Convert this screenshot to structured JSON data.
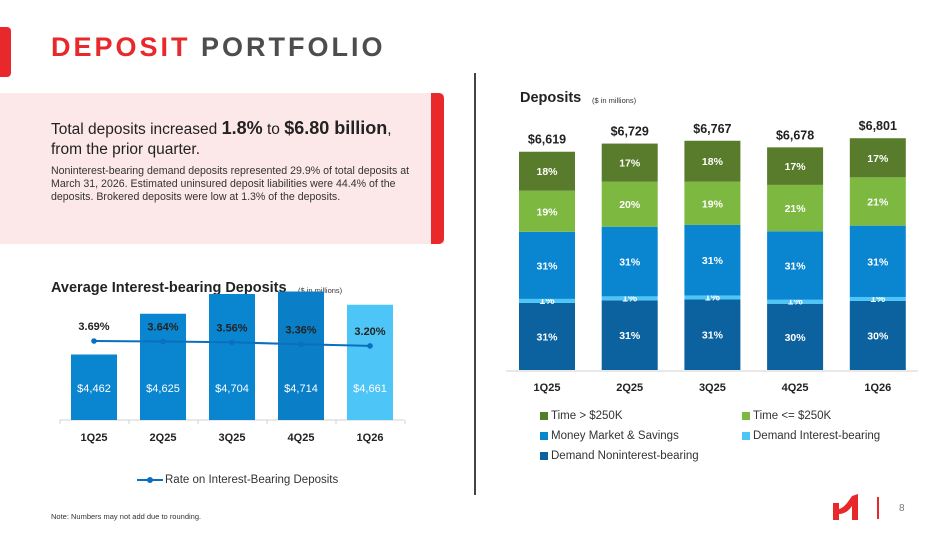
{
  "header": {
    "title_highlight": "DEPOSIT",
    "title_rest": "PORTFOLIO",
    "accent_color": "#e8282b"
  },
  "summary": {
    "headline_prefix": "Total deposits increased ",
    "headline_pct": "1.8%",
    "headline_mid": " to ",
    "headline_amount": "$6.80 billion",
    "headline_suffix": ", from the prior quarter.",
    "body": "Noninterest-bearing demand deposits represented 29.9% of total deposits at March 31, 2026. Estimated uninsured deposit liabilities were 44.4% of the deposits. Brokered deposits were low at 1.3% of the deposits."
  },
  "chart_data": [
    {
      "type": "bar",
      "title": "Average Interest-bearing Deposits",
      "subtitle": "($ in millions)",
      "categories": [
        "1Q25",
        "2Q25",
        "3Q25",
        "4Q25",
        "1Q26"
      ],
      "series": [
        {
          "name": "Average Interest-bearing Deposits",
          "values": [
            4462,
            4625,
            4704,
            4714,
            4661
          ],
          "labels": [
            "$4,462",
            "$4,625",
            "$4,704",
            "$4,714",
            "$4,661"
          ],
          "colors": [
            "#0a86d1",
            "#0a86d1",
            "#0a86d1",
            "#0a7fc8",
            "#4dc6f7"
          ]
        },
        {
          "name": "Rate on Interest-Bearing Deposits",
          "type": "line",
          "values": [
            3.69,
            3.64,
            3.56,
            3.36,
            3.2
          ],
          "labels": [
            "3.69%",
            "3.64%",
            "3.56%",
            "3.36%",
            "3.20%"
          ],
          "color": "#0a6fbf"
        }
      ],
      "legend": [
        "Rate on Interest-Bearing Deposits"
      ],
      "legend_position": "bottom",
      "grid": false
    },
    {
      "type": "bar",
      "stacked": true,
      "title": "Deposits",
      "subtitle": "($ in millions)",
      "categories": [
        "1Q25",
        "2Q25",
        "3Q25",
        "4Q25",
        "1Q26"
      ],
      "totals": [
        6619,
        6729,
        6767,
        6678,
        6801
      ],
      "total_labels": [
        "$6,619",
        "$6,729",
        "$6,767",
        "$6,678",
        "$6,801"
      ],
      "series": [
        {
          "name": "Demand Noninterest-bearing",
          "color": "#0b629e",
          "values": [
            31,
            31,
            31,
            30,
            30
          ],
          "labels": [
            "31%",
            "31%",
            "31%",
            "30%",
            "30%"
          ]
        },
        {
          "name": "Demand Interest-bearing",
          "color": "#4dc6f7",
          "values": [
            1,
            1,
            1,
            1,
            1
          ],
          "labels": [
            "1%",
            "1%",
            "1%",
            "1%",
            "1%"
          ]
        },
        {
          "name": "Money Market & Savings",
          "color": "#0a86d1",
          "values": [
            31,
            31,
            31,
            31,
            31
          ],
          "labels": [
            "31%",
            "31%",
            "31%",
            "31%",
            "31%"
          ]
        },
        {
          "name": "Time <= $250K",
          "color": "#7db940",
          "values": [
            19,
            20,
            19,
            21,
            21
          ],
          "labels": [
            "19%",
            "20%",
            "19%",
            "21%",
            "21%"
          ]
        },
        {
          "name": "Time > $250K",
          "color": "#587c2b",
          "values": [
            18,
            17,
            18,
            17,
            17
          ],
          "labels": [
            "18%",
            "17%",
            "18%",
            "17%",
            "17%"
          ]
        }
      ],
      "legend": [
        "Time > $250K",
        "Time <= $250K",
        "Money Market & Savings",
        "Demand Interest-bearing",
        "Demand Noninterest-bearing"
      ],
      "legend_position": "bottom",
      "grid": false
    }
  ],
  "footer": {
    "note": "Note: Numbers may not add due to rounding.",
    "page_number": "8",
    "logo_icon": "bank-logo-icon"
  }
}
